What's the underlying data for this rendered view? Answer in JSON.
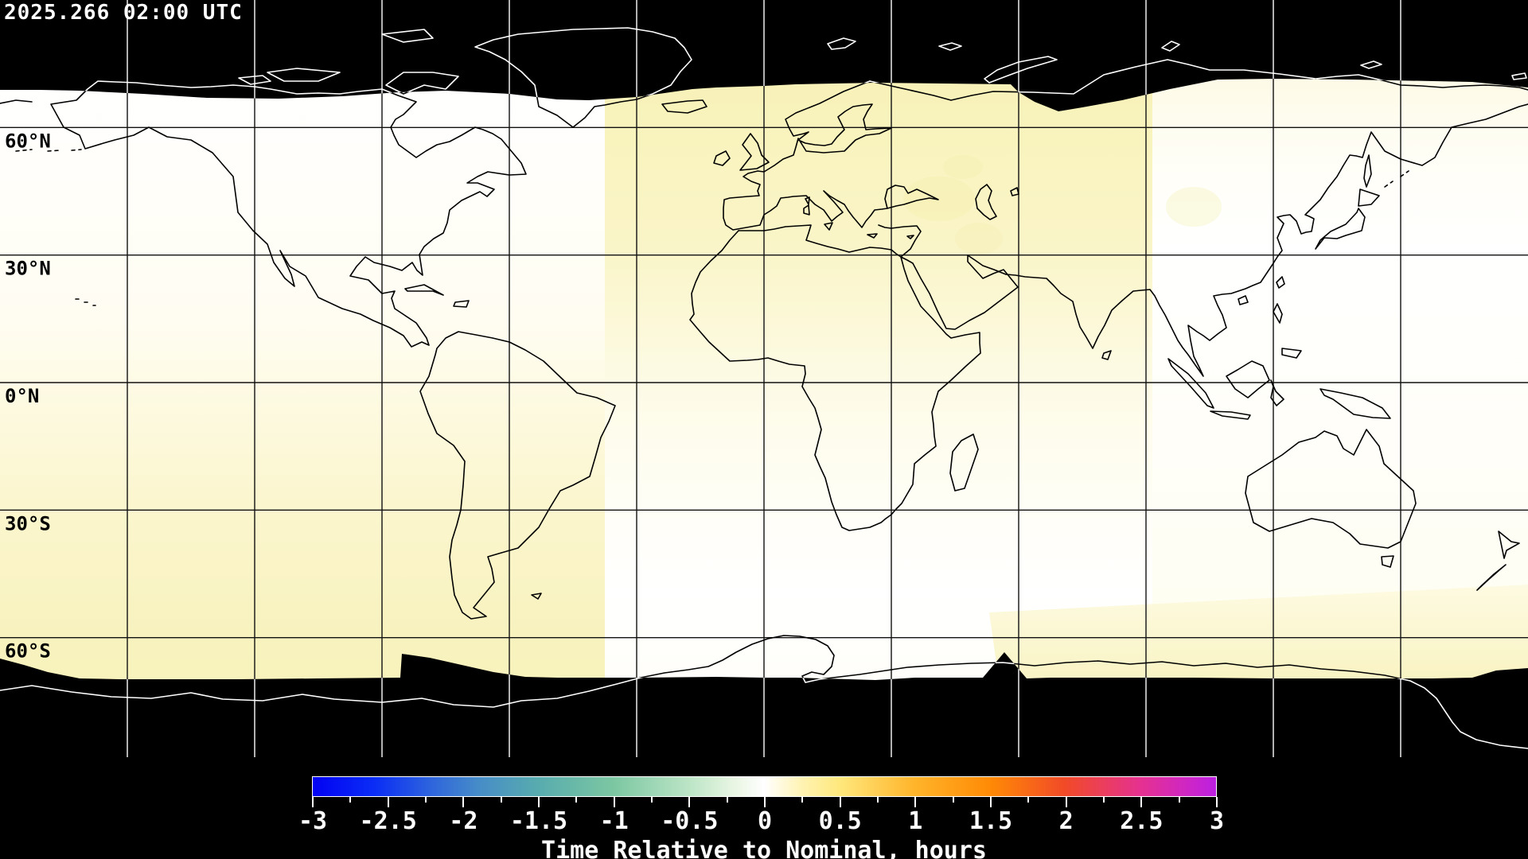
{
  "header": {
    "timestamp": "2025.266 02:00 UTC"
  },
  "map": {
    "projection": "equirectangular",
    "latitude_labels": [
      {
        "label": "60°N",
        "lat": 60
      },
      {
        "label": "30°N",
        "lat": 30
      },
      {
        "label": "0°N",
        "lat": 0
      },
      {
        "label": "30°S",
        "lat": -30
      },
      {
        "label": "60°S",
        "lat": -60
      }
    ],
    "grid": {
      "lon_step_deg": 30,
      "lat_step_deg": 30
    },
    "colors": {
      "no_data": "#000000",
      "coast_on_data": "#000000",
      "coast_on_nodata": "#ffffff",
      "grid_on_data": "#111111",
      "grid_on_nodata": "#ffffff",
      "swath_yellow": "#f8f2bc",
      "swath_white": "#ffffff"
    }
  },
  "chart_data": {
    "type": "heatmap",
    "title": "Time Relative to Nominal, hours",
    "timestamp": "2025.266 02:00 UTC",
    "value_range": [
      -3,
      3
    ],
    "regions": [
      {
        "area": "western band (Americas)",
        "value_top": 0.0,
        "value_bottom": 0.45
      },
      {
        "area": "central band (Europe/Africa)",
        "value_top": 0.45,
        "value_bottom": 0.0
      },
      {
        "area": "eastern band (Asia/Australia)",
        "value_top": 0.1,
        "value_bottom": 0.0
      },
      {
        "area": "southeast corner",
        "value": 0.4
      },
      {
        "area": "polar caps",
        "value": null
      }
    ]
  },
  "colorbar": {
    "title": "Time Relative to Nominal, hours",
    "min": -3,
    "max": 3,
    "major_tick_step": 0.5,
    "minor_tick_step": 0.25,
    "tick_labels": [
      "-3",
      "-2.5",
      "-2",
      "-1.5",
      "-1",
      "-0.5",
      "0",
      "0.5",
      "1",
      "1.5",
      "2",
      "2.5",
      "3"
    ],
    "gradient_stops": [
      {
        "value": -3.0,
        "color": "#0202f2"
      },
      {
        "value": -2.6,
        "color": "#0a2cf6"
      },
      {
        "value": -2.2,
        "color": "#2f66dc"
      },
      {
        "value": -1.9,
        "color": "#468cc8"
      },
      {
        "value": -1.5,
        "color": "#58acae"
      },
      {
        "value": -1.0,
        "color": "#7cc7a2"
      },
      {
        "value": -0.5,
        "color": "#bce5c6"
      },
      {
        "value": -0.2,
        "color": "#e9f6e3"
      },
      {
        "value": 0.0,
        "color": "#ffffff"
      },
      {
        "value": 0.25,
        "color": "#fff3b2"
      },
      {
        "value": 0.5,
        "color": "#ffe87d"
      },
      {
        "value": 1.0,
        "color": "#ffb42a"
      },
      {
        "value": 1.5,
        "color": "#ff8a05"
      },
      {
        "value": 2.0,
        "color": "#f14a28"
      },
      {
        "value": 2.5,
        "color": "#e53191"
      },
      {
        "value": 2.85,
        "color": "#cb25cb"
      },
      {
        "value": 3.0,
        "color": "#bb1fe0"
      }
    ]
  }
}
